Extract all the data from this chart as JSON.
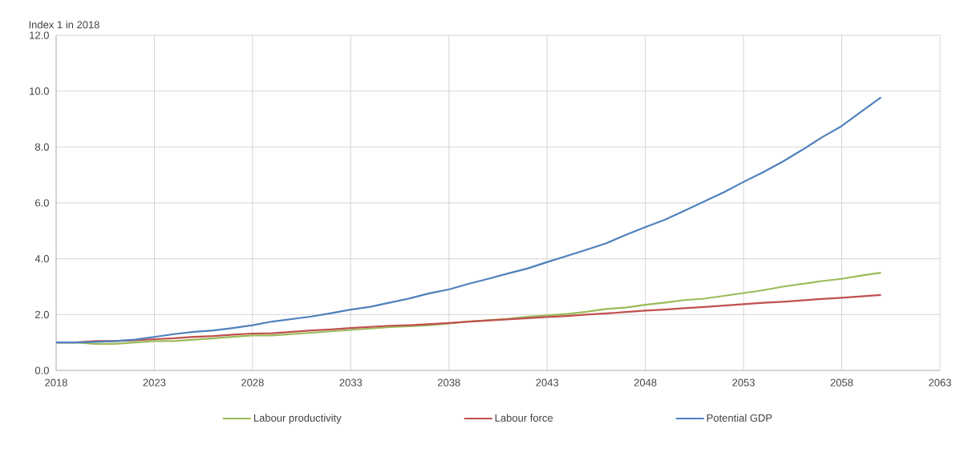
{
  "chart_data": {
    "type": "line",
    "ylabel": "Index 1 in 2018",
    "x": [
      2018,
      2019,
      2020,
      2021,
      2022,
      2023,
      2024,
      2025,
      2026,
      2027,
      2028,
      2029,
      2030,
      2031,
      2032,
      2033,
      2034,
      2035,
      2036,
      2037,
      2038,
      2039,
      2040,
      2041,
      2042,
      2043,
      2044,
      2045,
      2046,
      2047,
      2048,
      2049,
      2050,
      2051,
      2052,
      2053,
      2054,
      2055,
      2056,
      2057,
      2058,
      2059,
      2060
    ],
    "series": [
      {
        "name": "Labour productivity",
        "color": "#9bbb59",
        "values": [
          1.0,
          1.0,
          0.95,
          0.95,
          1.0,
          1.05,
          1.05,
          1.1,
          1.15,
          1.2,
          1.25,
          1.25,
          1.3,
          1.35,
          1.4,
          1.45,
          1.5,
          1.55,
          1.58,
          1.62,
          1.68,
          1.75,
          1.8,
          1.85,
          1.92,
          1.97,
          2.02,
          2.1,
          2.2,
          2.25,
          2.35,
          2.43,
          2.52,
          2.57,
          2.67,
          2.77,
          2.87,
          3.0,
          3.1,
          3.2,
          3.28,
          3.4,
          3.5
        ]
      },
      {
        "name": "Labour force",
        "color": "#c0504d",
        "values": [
          1.0,
          1.0,
          1.05,
          1.05,
          1.08,
          1.12,
          1.15,
          1.2,
          1.23,
          1.28,
          1.32,
          1.33,
          1.38,
          1.43,
          1.47,
          1.52,
          1.56,
          1.6,
          1.62,
          1.66,
          1.7,
          1.75,
          1.79,
          1.83,
          1.87,
          1.91,
          1.95,
          2.0,
          2.04,
          2.09,
          2.14,
          2.18,
          2.23,
          2.27,
          2.32,
          2.37,
          2.42,
          2.46,
          2.51,
          2.56,
          2.6,
          2.65,
          2.7
        ]
      },
      {
        "name": "Potential GDP",
        "color": "#4f81bd",
        "values": [
          1.0,
          1.0,
          1.02,
          1.05,
          1.1,
          1.2,
          1.3,
          1.38,
          1.43,
          1.52,
          1.62,
          1.75,
          1.84,
          1.93,
          2.05,
          2.18,
          2.28,
          2.43,
          2.58,
          2.76,
          2.9,
          3.1,
          3.28,
          3.47,
          3.65,
          3.88,
          4.1,
          4.32,
          4.55,
          4.85,
          5.13,
          5.4,
          5.72,
          6.05,
          6.38,
          6.75,
          7.1,
          7.48,
          7.9,
          8.35,
          8.75,
          9.27,
          9.78
        ]
      }
    ],
    "xlim": [
      2018,
      2063
    ],
    "xticks": [
      2018,
      2023,
      2028,
      2033,
      2038,
      2043,
      2048,
      2053,
      2058,
      2063
    ],
    "ylim": [
      0,
      12
    ],
    "yticks": [
      {
        "value": 0,
        "label": "0.0"
      },
      {
        "value": 2,
        "label": "2.0"
      },
      {
        "value": 4,
        "label": "4.0"
      },
      {
        "value": 6,
        "label": "6.0"
      },
      {
        "value": 8,
        "label": "8.0"
      },
      {
        "value": 10,
        "label": "10.0"
      },
      {
        "value": 12,
        "label": "12.0"
      }
    ],
    "grid": true,
    "legend": "bottom",
    "marker": "none",
    "line_style": "solid"
  }
}
